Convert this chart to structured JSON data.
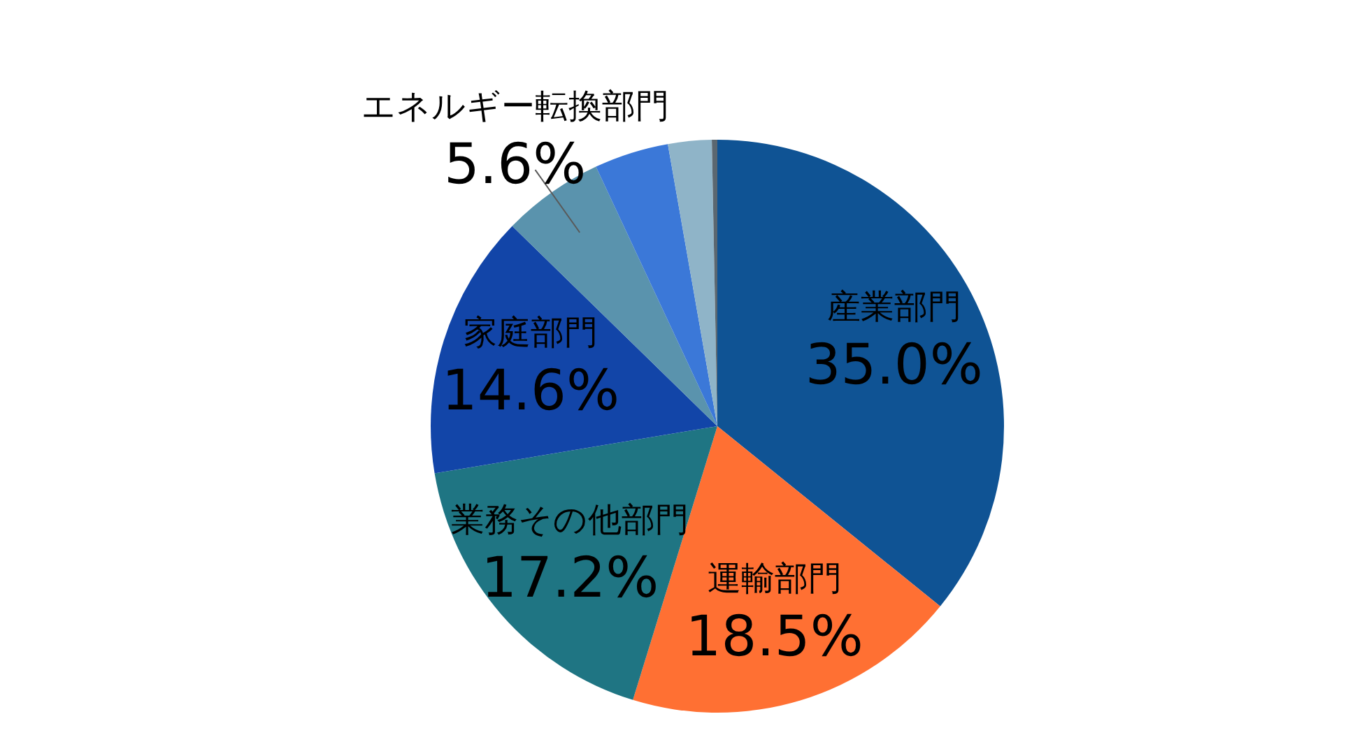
{
  "chart_data": {
    "type": "pie",
    "categories": [
      "産業部門",
      "運輸部門",
      "業務その他部門",
      "家庭部門",
      "エネルギー転換部門",
      null,
      null,
      null
    ],
    "values": [
      35.0,
      18.5,
      17.2,
      14.6,
      5.6,
      4.1,
      2.4,
      0.3
    ],
    "value_labels": [
      "35.0%",
      "18.5%",
      "17.2%",
      "14.6%",
      "5.6%",
      null,
      null,
      null
    ],
    "colors": [
      "#0f5394",
      "#ff7033",
      "#1f7583",
      "#1245a8",
      "#5a93ad",
      "#3b78d8",
      "#8fb4c8",
      "#5b6770"
    ]
  }
}
